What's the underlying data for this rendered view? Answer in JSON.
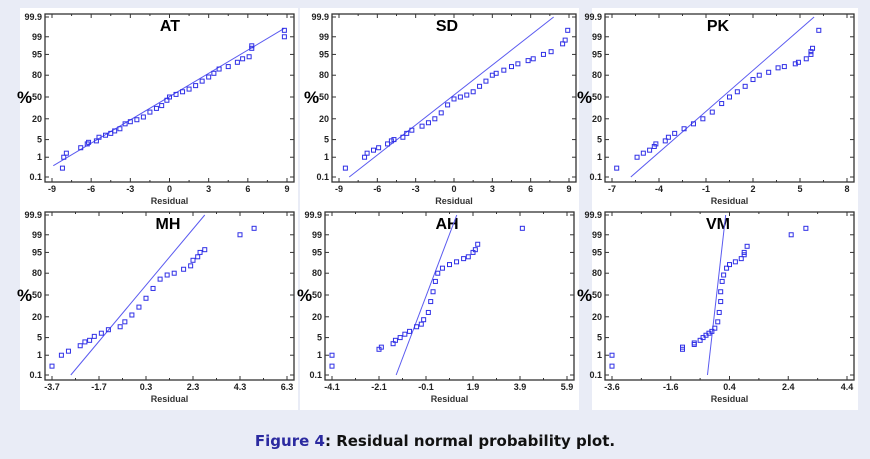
{
  "caption": {
    "figure_label": "Figure 4",
    "separator": ":",
    "text": " Residual normal probability plot."
  },
  "colors": {
    "points": "#2f2fe6",
    "fit_line": "#5a5af0",
    "frame": "#333333",
    "caption_label": "#2b2aa0"
  },
  "chart_data": [
    {
      "type": "scatter",
      "title": "AT",
      "xlabel": "Residual",
      "ylabel": "%",
      "y_scale": "normal-probability",
      "x_ticks": [
        "-9",
        "-6",
        "-3",
        "0",
        "3",
        "6",
        "9"
      ],
      "xlim": [
        -9,
        9
      ],
      "y_ticks": [
        "0.1",
        "1",
        "5",
        "20",
        "50",
        "80",
        "95",
        "99",
        "99.9"
      ],
      "ylim": [
        0.1,
        99.9
      ],
      "fit_line": [
        [
          -8.9,
          0.4
        ],
        [
          8.8,
          99.6
        ]
      ],
      "points": [
        [
          -8.2,
          0.3
        ],
        [
          -8.1,
          1
        ],
        [
          -7.9,
          1.5
        ],
        [
          -6.8,
          2.5
        ],
        [
          -6.3,
          3.5
        ],
        [
          -6.2,
          4
        ],
        [
          -5.6,
          4.5
        ],
        [
          -5.4,
          6
        ],
        [
          -4.9,
          7
        ],
        [
          -4.5,
          8
        ],
        [
          -4.2,
          9.5
        ],
        [
          -3.8,
          11
        ],
        [
          -3.4,
          15
        ],
        [
          -3,
          17
        ],
        [
          -2.5,
          19
        ],
        [
          -2,
          22
        ],
        [
          -1.5,
          28
        ],
        [
          -1,
          33
        ],
        [
          -0.6,
          37
        ],
        [
          -0.2,
          45
        ],
        [
          0,
          50
        ],
        [
          0.5,
          54
        ],
        [
          1,
          58
        ],
        [
          1.5,
          62
        ],
        [
          2,
          67
        ],
        [
          2.5,
          73
        ],
        [
          3,
          78
        ],
        [
          3.4,
          82
        ],
        [
          3.8,
          86
        ],
        [
          4.5,
          88
        ],
        [
          5.2,
          91
        ],
        [
          5.6,
          93
        ],
        [
          6.1,
          94
        ],
        [
          6.3,
          97
        ],
        [
          6.3,
          97.6
        ],
        [
          8.8,
          99.5
        ],
        [
          8.8,
          99
        ]
      ]
    },
    {
      "type": "scatter",
      "title": "SD",
      "xlabel": "Residual",
      "ylabel": "%",
      "y_scale": "normal-probability",
      "x_ticks": [
        "-9",
        "-6",
        "-3",
        "0",
        "3",
        "6",
        "9"
      ],
      "xlim": [
        -9,
        9
      ],
      "y_ticks": [
        "0.1",
        "1",
        "5",
        "20",
        "50",
        "80",
        "95",
        "99",
        "99.9"
      ],
      "ylim": [
        0.1,
        99.9
      ],
      "fit_line": [
        [
          -8.2,
          0.1
        ],
        [
          7.8,
          99.9
        ]
      ],
      "points": [
        [
          -8.5,
          0.3
        ],
        [
          -7,
          1
        ],
        [
          -6.8,
          1.5
        ],
        [
          -6.3,
          2
        ],
        [
          -5.9,
          2.5
        ],
        [
          -5.2,
          3.5
        ],
        [
          -4.9,
          4.5
        ],
        [
          -4.7,
          5
        ],
        [
          -4,
          6
        ],
        [
          -3.7,
          8
        ],
        [
          -3.3,
          10
        ],
        [
          -2.5,
          13
        ],
        [
          -2,
          16
        ],
        [
          -1.5,
          20
        ],
        [
          -1,
          27
        ],
        [
          -0.5,
          38
        ],
        [
          0,
          47
        ],
        [
          0.5,
          50
        ],
        [
          1,
          53
        ],
        [
          1.5,
          58
        ],
        [
          2,
          66
        ],
        [
          2.5,
          73
        ],
        [
          3,
          80
        ],
        [
          3.3,
          82
        ],
        [
          3.9,
          85
        ],
        [
          4.5,
          88
        ],
        [
          5,
          90
        ],
        [
          5.8,
          92
        ],
        [
          6.2,
          93
        ],
        [
          7,
          95
        ],
        [
          7.6,
          96
        ],
        [
          8.5,
          98
        ],
        [
          8.7,
          98.6
        ],
        [
          8.9,
          99.5
        ]
      ]
    },
    {
      "type": "scatter",
      "title": "PK",
      "xlabel": "Residual",
      "ylabel": "%",
      "y_scale": "normal-probability",
      "x_ticks": [
        "-7",
        "-4",
        "-1",
        "2",
        "5",
        "8"
      ],
      "xlim": [
        -7,
        8
      ],
      "y_ticks": [
        "0.1",
        "1",
        "5",
        "20",
        "50",
        "80",
        "95",
        "99",
        "99.9"
      ],
      "ylim": [
        0.1,
        99.9
      ],
      "fit_line": [
        [
          -5.8,
          0.1
        ],
        [
          5.9,
          99.9
        ]
      ],
      "points": [
        [
          -6.7,
          0.3
        ],
        [
          -5.4,
          1
        ],
        [
          -5,
          1.5
        ],
        [
          -4.6,
          2
        ],
        [
          -4.3,
          2.8
        ],
        [
          -4.2,
          3.5
        ],
        [
          -3.6,
          4.5
        ],
        [
          -3.4,
          6
        ],
        [
          -3,
          8
        ],
        [
          -2.4,
          11
        ],
        [
          -1.8,
          15
        ],
        [
          -1.2,
          20
        ],
        [
          -0.6,
          28
        ],
        [
          0,
          40
        ],
        [
          0.5,
          50
        ],
        [
          1,
          58
        ],
        [
          1.5,
          66
        ],
        [
          2,
          75
        ],
        [
          2.4,
          80
        ],
        [
          3,
          83
        ],
        [
          3.6,
          87
        ],
        [
          4,
          88
        ],
        [
          4.7,
          90
        ],
        [
          4.9,
          91
        ],
        [
          5.4,
          93
        ],
        [
          5.7,
          95
        ],
        [
          5.7,
          96
        ],
        [
          5.8,
          97
        ],
        [
          6.2,
          99.5
        ]
      ]
    },
    {
      "type": "scatter",
      "title": "MH",
      "xlabel": "Residual",
      "ylabel": "%",
      "y_scale": "normal-probability",
      "x_ticks": [
        "-3.7",
        "-1.7",
        "0.3",
        "2.3",
        "4.3",
        "6.3"
      ],
      "xlim": [
        -3.7,
        6.3
      ],
      "y_ticks": [
        "0.1",
        "1",
        "5",
        "20",
        "50",
        "80",
        "95",
        "99",
        "99.9"
      ],
      "ylim": [
        0.1,
        99.9
      ],
      "fit_line": [
        [
          -2.9,
          0.1
        ],
        [
          2.8,
          99.9
        ]
      ],
      "points": [
        [
          -3.7,
          0.3
        ],
        [
          -3.3,
          1
        ],
        [
          -3,
          1.5
        ],
        [
          -2.5,
          2.5
        ],
        [
          -2.3,
          3.5
        ],
        [
          -2.1,
          4
        ],
        [
          -1.9,
          5.5
        ],
        [
          -1.6,
          7
        ],
        [
          -1.3,
          9
        ],
        [
          -0.8,
          11
        ],
        [
          -0.6,
          15
        ],
        [
          -0.3,
          22
        ],
        [
          0,
          32
        ],
        [
          0.3,
          45
        ],
        [
          0.6,
          60
        ],
        [
          0.9,
          73
        ],
        [
          1.2,
          78
        ],
        [
          1.5,
          80
        ],
        [
          1.9,
          84
        ],
        [
          2.2,
          87
        ],
        [
          2.3,
          91
        ],
        [
          2.5,
          93
        ],
        [
          2.6,
          95
        ],
        [
          2.8,
          96
        ],
        [
          4.3,
          99
        ],
        [
          4.9,
          99.5
        ]
      ]
    },
    {
      "type": "scatter",
      "title": "AH",
      "xlabel": "Residual",
      "ylabel": "%",
      "y_scale": "normal-probability",
      "x_ticks": [
        "-4.1",
        "-2.1",
        "-0.1",
        "1.9",
        "3.9",
        "5.9"
      ],
      "xlim": [
        -4.1,
        5.9
      ],
      "y_ticks": [
        "0.1",
        "1",
        "5",
        "20",
        "50",
        "80",
        "95",
        "99",
        "99.9"
      ],
      "ylim": [
        0.1,
        99.9
      ],
      "fit_line": [
        [
          -1.37,
          0.1
        ],
        [
          1.21,
          99.9
        ]
      ],
      "points": [
        [
          -4.1,
          0.3
        ],
        [
          -4.1,
          1
        ],
        [
          -2.1,
          1.8
        ],
        [
          -2,
          2.2
        ],
        [
          -1.5,
          3
        ],
        [
          -1.4,
          4
        ],
        [
          -1.2,
          5
        ],
        [
          -1,
          6.5
        ],
        [
          -0.8,
          8
        ],
        [
          -0.5,
          11
        ],
        [
          -0.3,
          13
        ],
        [
          -0.2,
          17
        ],
        [
          0,
          25
        ],
        [
          0.1,
          40
        ],
        [
          0.2,
          55
        ],
        [
          0.3,
          70
        ],
        [
          0.4,
          80
        ],
        [
          0.6,
          85
        ],
        [
          0.9,
          88
        ],
        [
          1.2,
          90
        ],
        [
          1.5,
          92
        ],
        [
          1.7,
          93
        ],
        [
          1.9,
          95
        ],
        [
          2,
          96
        ],
        [
          2.1,
          97.5
        ],
        [
          4,
          99.5
        ]
      ]
    },
    {
      "type": "scatter",
      "title": "VM",
      "xlabel": "Residual",
      "ylabel": "%",
      "y_scale": "normal-probability",
      "x_ticks": [
        "-3.6",
        "-1.6",
        "0.4",
        "2.4",
        "4.4"
      ],
      "xlim": [
        -3.6,
        4.4
      ],
      "y_ticks": [
        "0.1",
        "1",
        "5",
        "20",
        "50",
        "80",
        "95",
        "99",
        "99.9"
      ],
      "ylim": [
        0.1,
        99.9
      ],
      "fit_line": [
        [
          -0.35,
          0.1
        ],
        [
          0.27,
          99.9
        ]
      ],
      "points": [
        [
          -3.6,
          0.3
        ],
        [
          -3.6,
          1
        ],
        [
          -1.2,
          1.8
        ],
        [
          -1.2,
          2.2
        ],
        [
          -0.8,
          2.8
        ],
        [
          -0.8,
          3.2
        ],
        [
          -0.6,
          4
        ],
        [
          -0.5,
          5
        ],
        [
          -0.4,
          6
        ],
        [
          -0.3,
          7
        ],
        [
          -0.2,
          8
        ],
        [
          -0.1,
          10
        ],
        [
          0,
          15
        ],
        [
          0.05,
          25
        ],
        [
          0.1,
          40
        ],
        [
          0.1,
          55
        ],
        [
          0.15,
          70
        ],
        [
          0.2,
          78
        ],
        [
          0.3,
          85
        ],
        [
          0.4,
          88
        ],
        [
          0.6,
          90
        ],
        [
          0.8,
          92
        ],
        [
          0.9,
          94
        ],
        [
          0.9,
          95
        ],
        [
          1,
          97
        ],
        [
          2.5,
          99
        ],
        [
          3,
          99.5
        ]
      ]
    }
  ]
}
